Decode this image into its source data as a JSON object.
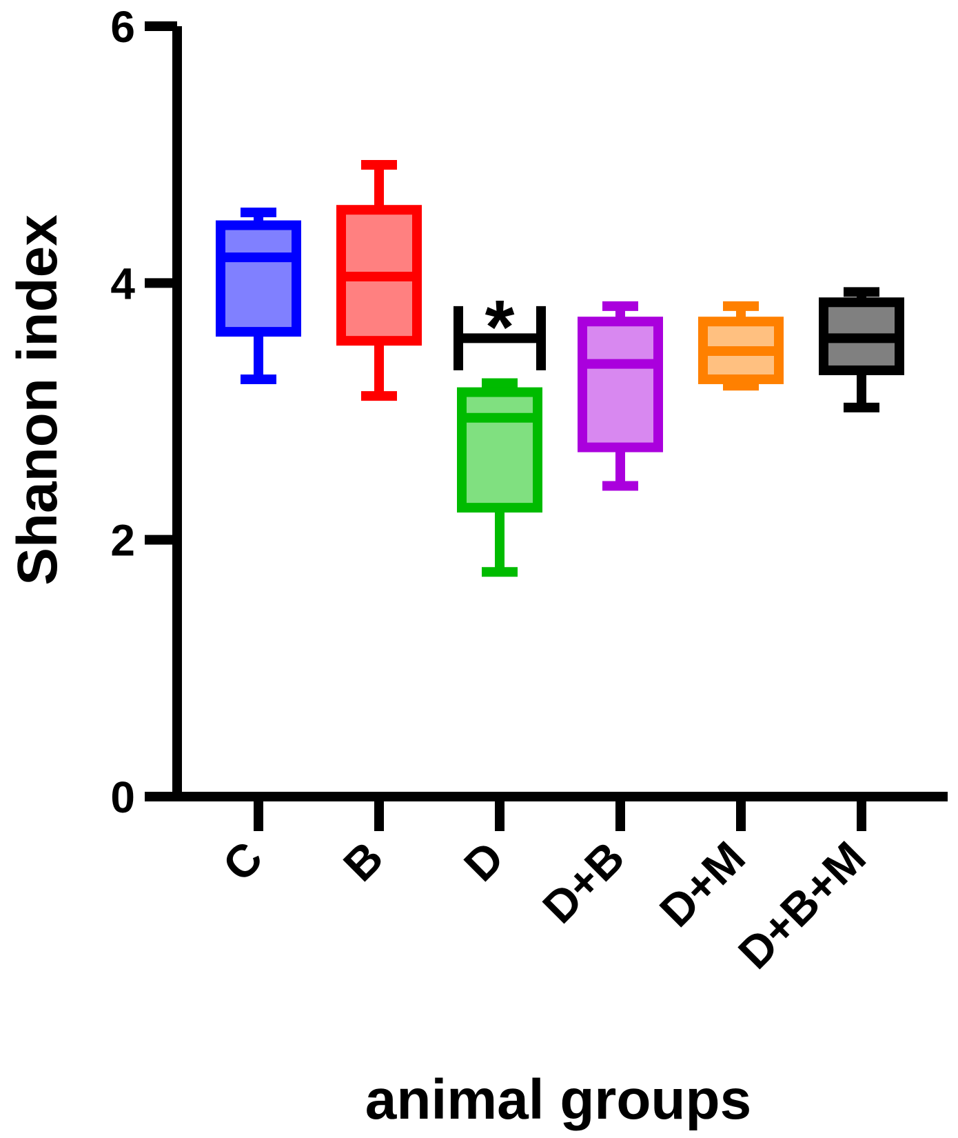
{
  "chart_data": {
    "type": "box",
    "xlabel": "animal groups",
    "ylabel": "Shanon index",
    "ylim": [
      0,
      6
    ],
    "yticks": [
      0,
      2,
      4,
      6
    ],
    "grid": false,
    "legend": "none",
    "categories": [
      "C",
      "B",
      "D",
      "D+B",
      "D+M",
      "D+B+M"
    ],
    "boxes": [
      {
        "category": "C",
        "min": 3.25,
        "q1": 3.62,
        "median": 4.2,
        "q3": 4.45,
        "max": 4.55,
        "color": "#0000ff",
        "fill": "#8080ff"
      },
      {
        "category": "B",
        "min": 3.12,
        "q1": 3.55,
        "median": 4.05,
        "q3": 4.57,
        "max": 4.92,
        "color": "#ff0000",
        "fill": "#ff8080"
      },
      {
        "category": "D",
        "min": 1.75,
        "q1": 2.25,
        "median": 2.95,
        "q3": 3.15,
        "max": 3.22,
        "color": "#00bb00",
        "fill": "#80e080"
      },
      {
        "category": "D+B",
        "min": 2.42,
        "q1": 2.72,
        "median": 3.37,
        "q3": 3.7,
        "max": 3.82,
        "color": "#aa00dd",
        "fill": "#d888f0"
      },
      {
        "category": "D+M",
        "min": 3.2,
        "q1": 3.25,
        "median": 3.47,
        "q3": 3.7,
        "max": 3.82,
        "color": "#ff8000",
        "fill": "#ffc080"
      },
      {
        "category": "D+B+M",
        "min": 3.03,
        "q1": 3.32,
        "median": 3.57,
        "q3": 3.85,
        "max": 3.93,
        "color": "#000000",
        "fill": "#808080"
      }
    ],
    "annotations": [
      {
        "text": "*",
        "group": "D",
        "type": "significance-bracket",
        "value": 3.57,
        "span": [
          3.32,
          3.82
        ]
      }
    ]
  }
}
